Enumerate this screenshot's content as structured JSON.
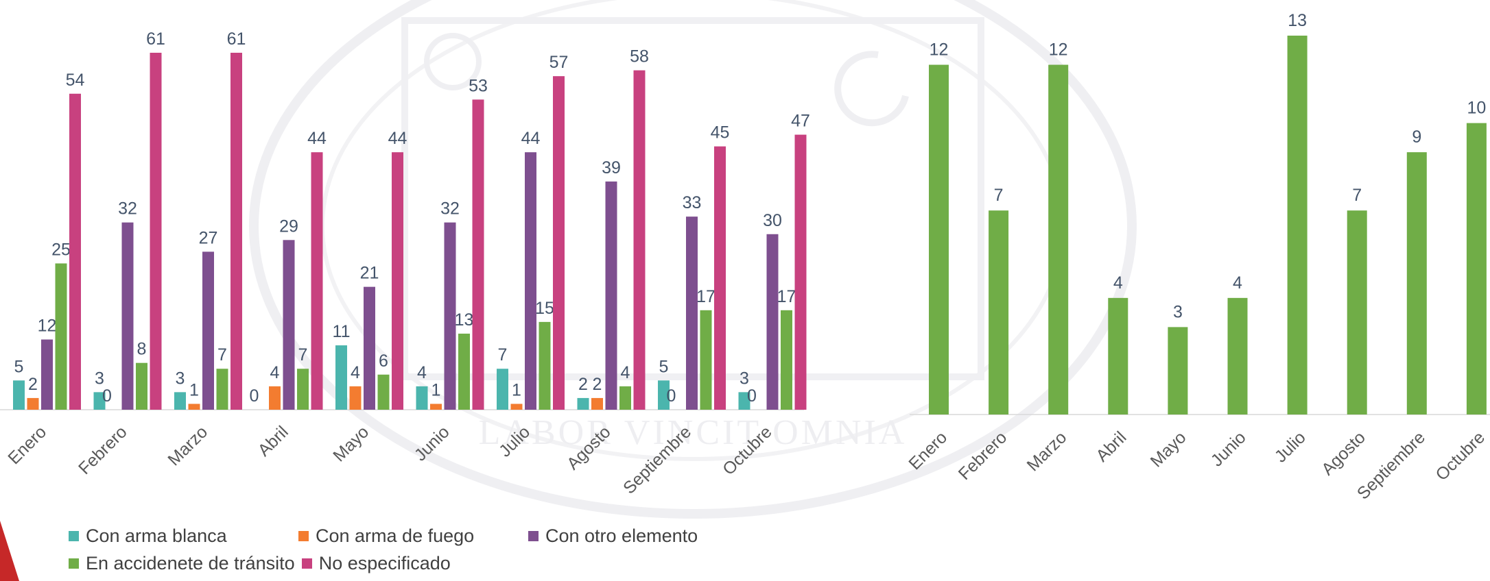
{
  "colors": {
    "arma_blanca": "#4bb5ad",
    "arma_fuego": "#f37c30",
    "otro_elemento": "#7e4f8f",
    "accidente": "#70ad47",
    "no_especificado": "#c8417f",
    "label_text": "#44546a",
    "axis": "#d9d9d9",
    "watermark": "#efeff2"
  },
  "background": {
    "watermark_text": "LABOR VINCIT OMNIA"
  },
  "chart_data": [
    {
      "type": "bar",
      "title": "",
      "xlabel": "",
      "ylabel": "",
      "ylim": [
        0,
        61
      ],
      "grid": false,
      "legend_placement": "bottom",
      "categories": [
        "Enero",
        "Febrero",
        "Marzo",
        "Abril",
        "Mayo",
        "Junio",
        "Julio",
        "Agosto",
        "Septiembre",
        "Octubre"
      ],
      "series": [
        {
          "name": "Con arma blanca",
          "color": "#4bb5ad",
          "values": [
            5,
            3,
            3,
            0,
            11,
            4,
            7,
            2,
            5,
            3
          ]
        },
        {
          "name": "Con arma de fuego",
          "color": "#f37c30",
          "values": [
            2,
            0,
            1,
            4,
            4,
            1,
            1,
            2,
            0,
            0
          ]
        },
        {
          "name": "Con otro elemento",
          "color": "#7e4f8f",
          "values": [
            12,
            32,
            27,
            29,
            21,
            32,
            44,
            39,
            33,
            30
          ]
        },
        {
          "name": "En accidenete de tránsito",
          "color": "#70ad47",
          "values": [
            25,
            8,
            7,
            7,
            6,
            13,
            15,
            4,
            17,
            17
          ]
        },
        {
          "name": "No especificado",
          "color": "#c8417f",
          "values": [
            54,
            61,
            61,
            44,
            44,
            53,
            57,
            58,
            45,
            47
          ]
        }
      ]
    },
    {
      "type": "bar",
      "title": "",
      "xlabel": "",
      "ylabel": "",
      "ylim": [
        0,
        13
      ],
      "grid": false,
      "legend_placement": "none",
      "categories": [
        "Enero",
        "Febrero",
        "Marzo",
        "Abril",
        "Mayo",
        "Junio",
        "Julio",
        "Agosto",
        "Septiembre",
        "Octubre"
      ],
      "series": [
        {
          "color": "#70ad47",
          "values": [
            12,
            7,
            12,
            4,
            3,
            4,
            13,
            7,
            9,
            10
          ]
        }
      ]
    }
  ]
}
